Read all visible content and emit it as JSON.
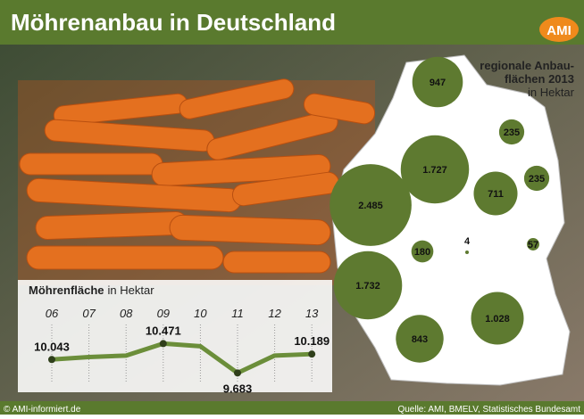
{
  "header": {
    "title": "Möhrenanbau in Deutschland",
    "logo": "AMI"
  },
  "footer": {
    "copyright": "© AMI-informiert.de",
    "source": "Quelle: AMI, BMELV, Statistisches Bundesamt"
  },
  "chart_data": [
    {
      "type": "line",
      "title": "Möhrenfläche",
      "unit": "in Hektar",
      "categories": [
        "06",
        "07",
        "08",
        "09",
        "10",
        "11",
        "12",
        "13"
      ],
      "values": [
        10043,
        10110,
        10150,
        10471,
        10400,
        9683,
        10150,
        10189
      ],
      "value_labels": [
        "10.043",
        null,
        null,
        "10.471",
        null,
        "9.683",
        null,
        "10.189"
      ],
      "ylim": [
        9500,
        10600
      ],
      "color": "#6b8e3a"
    },
    {
      "type": "bubble-map",
      "title_lines": [
        "regionale Anbau-",
        "flächen 2013"
      ],
      "unit": "in Hektar",
      "categories": [
        null,
        null,
        null,
        null,
        null,
        null,
        null,
        null,
        null,
        null,
        null,
        null
      ],
      "values": [
        947,
        1727,
        2485,
        711,
        235,
        235,
        180,
        4,
        57,
        1732,
        843,
        1028
      ],
      "value_labels": [
        "947",
        "1.727",
        "2.485",
        "711",
        "235",
        "235",
        "180",
        "4",
        "57",
        "1.732",
        "843",
        "1.028"
      ],
      "color": "#5e7a30"
    }
  ]
}
